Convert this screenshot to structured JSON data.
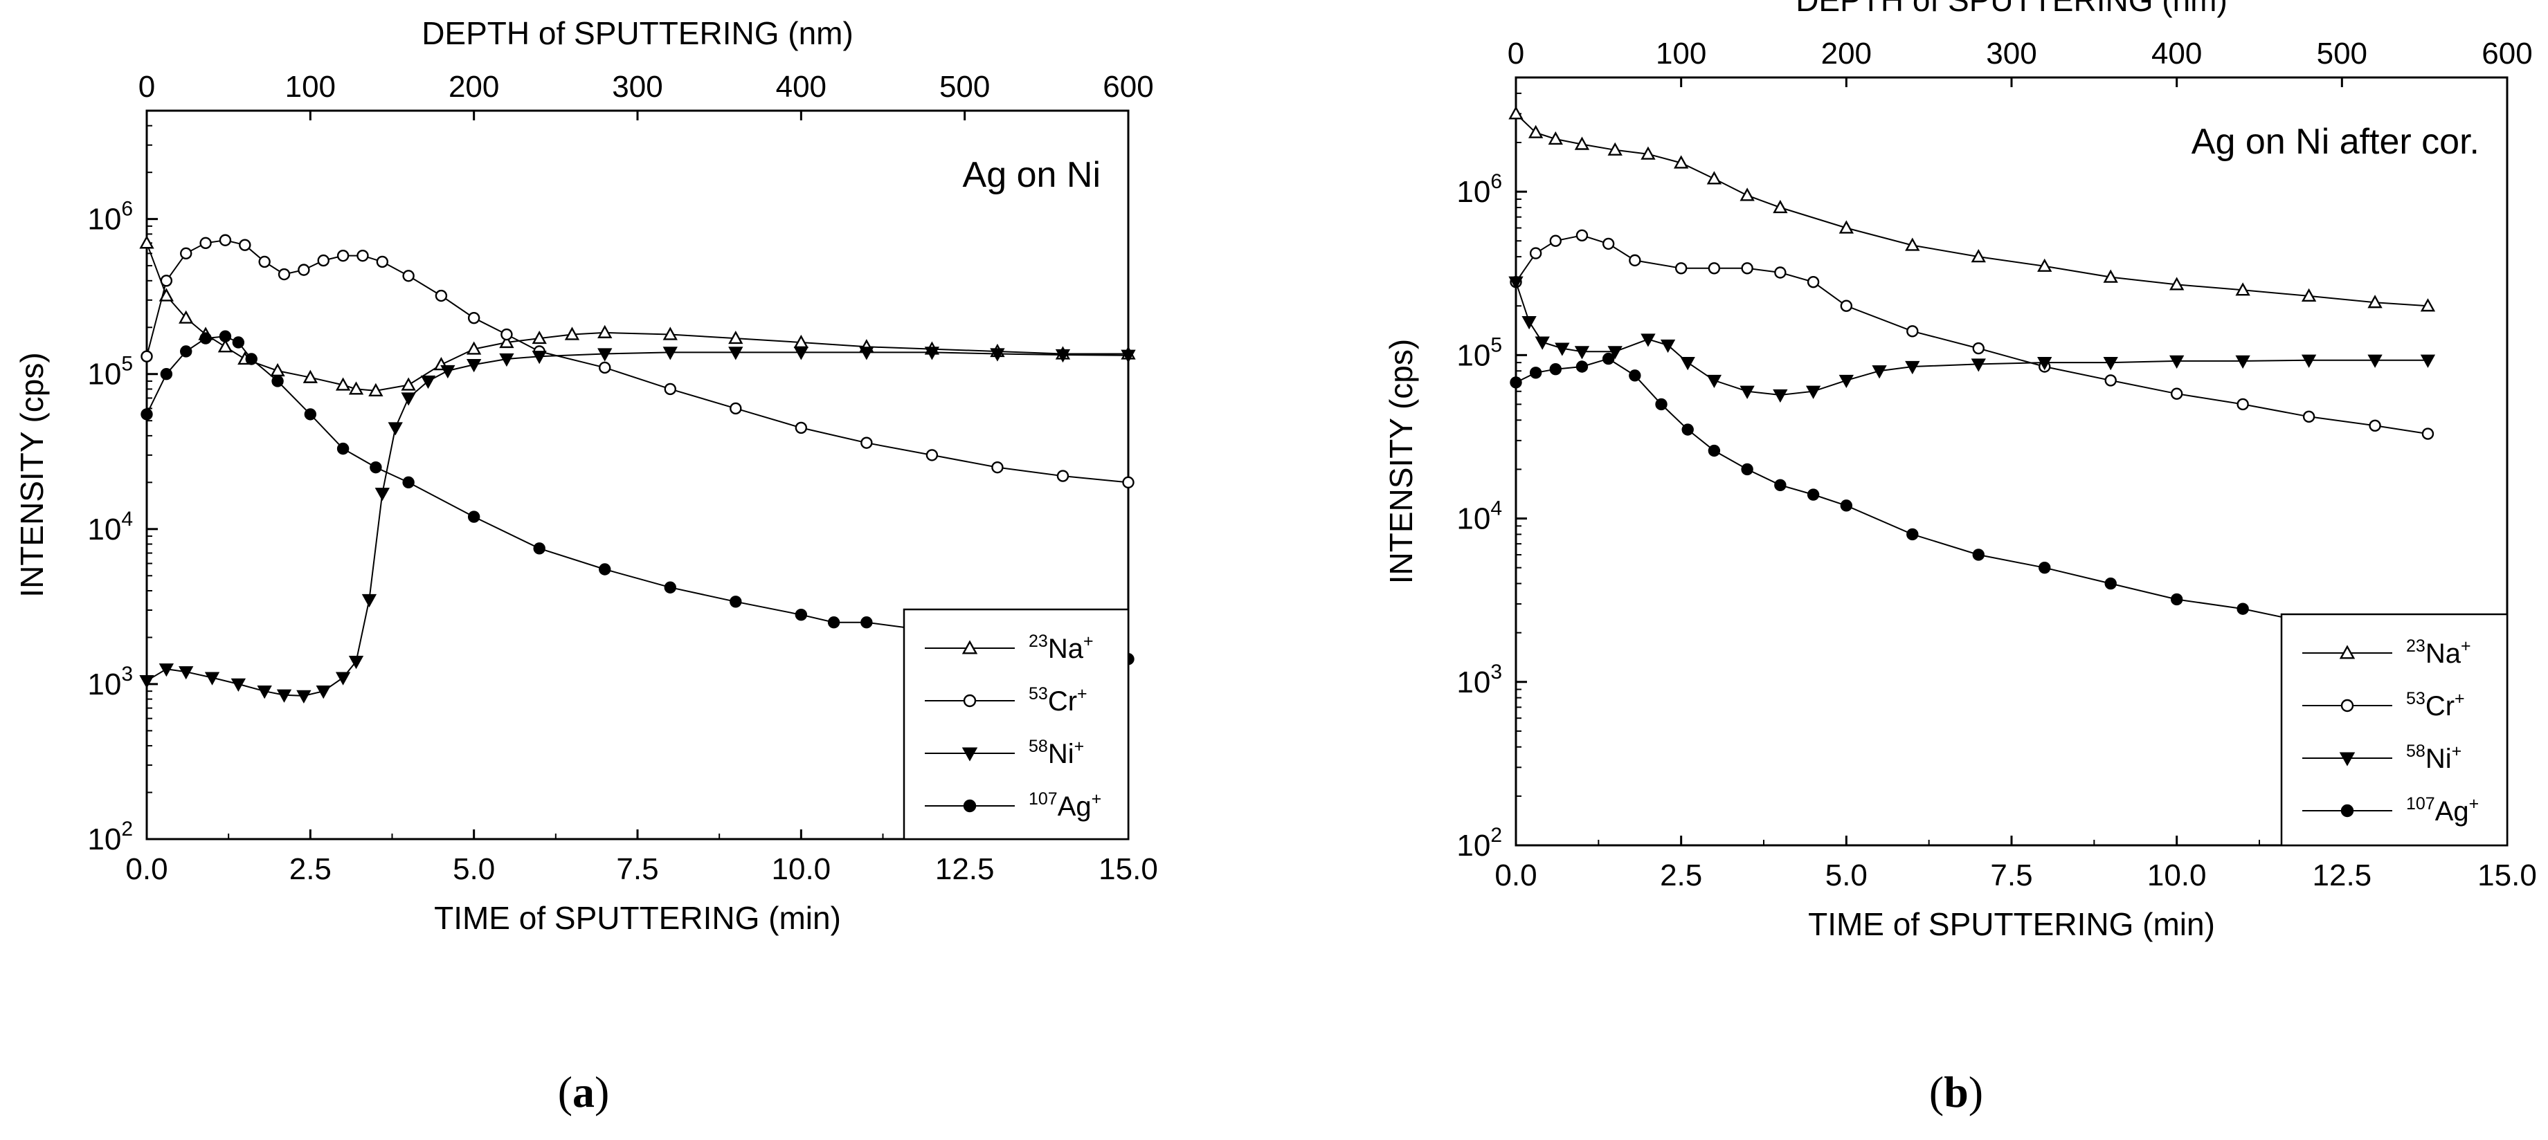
{
  "chart_data": [
    {
      "type": "line",
      "panel": "(a)",
      "panel_letter": "a",
      "annotation": "Ag on Ni",
      "xlabel": "TIME of SPUTTERING (min)",
      "x2label": "DEPTH of SPUTTERING (nm)",
      "ylabel": "INTENSITY (cps)",
      "xlim": [
        0,
        15
      ],
      "x2lim": [
        0,
        600
      ],
      "ylim": [
        100,
        5000000
      ],
      "yscale": "log",
      "xticks": [
        "0.0",
        "2.5",
        "5.0",
        "7.5",
        "10.0",
        "12.5",
        "15.0"
      ],
      "x2ticks": [
        "0",
        "100",
        "200",
        "300",
        "400",
        "500",
        "600"
      ],
      "yticks": [
        {
          "base": "10",
          "exp": "2"
        },
        {
          "base": "10",
          "exp": "3"
        },
        {
          "base": "10",
          "exp": "4"
        },
        {
          "base": "10",
          "exp": "5"
        },
        {
          "base": "10",
          "exp": "6"
        }
      ],
      "legend_position": "lower-right",
      "series": [
        {
          "name": "23Na+",
          "mass": "23",
          "element": "Na",
          "charge": "+",
          "marker": "triangle-open",
          "x": [
            0,
            0.3,
            0.6,
            0.9,
            1.2,
            1.5,
            2,
            2.5,
            3,
            3.2,
            3.5,
            4,
            4.5,
            5,
            5.5,
            6,
            6.5,
            7,
            8,
            9,
            10,
            11,
            12,
            13,
            14,
            15
          ],
          "values": [
            700000,
            320000,
            230000,
            180000,
            150000,
            125000,
            105000,
            95000,
            85000,
            80000,
            78000,
            85000,
            115000,
            145000,
            160000,
            170000,
            180000,
            185000,
            180000,
            170000,
            160000,
            150000,
            145000,
            140000,
            135000,
            135000
          ]
        },
        {
          "name": "53Cr+",
          "mass": "53",
          "element": "Cr",
          "charge": "+",
          "marker": "circle-open",
          "x": [
            0,
            0.3,
            0.6,
            0.9,
            1.2,
            1.5,
            1.8,
            2.1,
            2.4,
            2.7,
            3.0,
            3.3,
            3.6,
            4.0,
            4.5,
            5,
            5.5,
            6,
            7,
            8,
            9,
            10,
            11,
            12,
            13,
            14,
            15
          ],
          "values": [
            130000,
            400000,
            600000,
            700000,
            730000,
            680000,
            530000,
            440000,
            470000,
            540000,
            580000,
            580000,
            530000,
            430000,
            320000,
            230000,
            180000,
            140000,
            110000,
            80000,
            60000,
            45000,
            36000,
            30000,
            25000,
            22000,
            20000
          ]
        },
        {
          "name": "58Ni+",
          "mass": "58",
          "element": "Ni",
          "charge": "+",
          "marker": "triangle-filled-down",
          "x": [
            0,
            0.3,
            0.6,
            1.0,
            1.4,
            1.8,
            2.1,
            2.4,
            2.7,
            3.0,
            3.2,
            3.4,
            3.6,
            3.8,
            4.0,
            4.3,
            4.6,
            5,
            5.5,
            6,
            7,
            8,
            9,
            10,
            11,
            12,
            13,
            14,
            15
          ],
          "values": [
            1050,
            1250,
            1200,
            1100,
            1000,
            900,
            850,
            840,
            900,
            1100,
            1400,
            3500,
            17000,
            45000,
            70000,
            90000,
            105000,
            115000,
            125000,
            130000,
            135000,
            138000,
            138000,
            138000,
            138000,
            138000,
            135000,
            133000,
            132000
          ]
        },
        {
          "name": "107Ag+",
          "mass": "107",
          "element": "Ag",
          "charge": "+",
          "marker": "circle-filled",
          "x": [
            0,
            0.3,
            0.6,
            0.9,
            1.2,
            1.4,
            1.6,
            2.0,
            2.5,
            3.0,
            3.5,
            4.0,
            5.0,
            6.0,
            7.0,
            8.0,
            9.0,
            10.0,
            10.5,
            11.0,
            12.0,
            13.0,
            14.0,
            15.0
          ],
          "values": [
            55000,
            100000,
            140000,
            170000,
            175000,
            160000,
            125000,
            90000,
            55000,
            33000,
            25000,
            20000,
            12000,
            7500,
            5500,
            4200,
            3400,
            2800,
            2500,
            2500,
            2200,
            1900,
            1650,
            1450
          ]
        }
      ]
    },
    {
      "type": "line",
      "panel": "(b)",
      "panel_letter": "b",
      "annotation": "Ag on Ni after cor.",
      "xlabel": "TIME of SPUTTERING (min)",
      "x2label": "DEPTH of SPUTTERING (nm)",
      "ylabel": "INTENSITY (cps)",
      "xlim": [
        0,
        15
      ],
      "x2lim": [
        0,
        600
      ],
      "ylim": [
        100,
        5000000
      ],
      "yscale": "log",
      "xticks": [
        "0.0",
        "2.5",
        "5.0",
        "7.5",
        "10.0",
        "12.5",
        "15.0"
      ],
      "x2ticks": [
        "0",
        "100",
        "200",
        "300",
        "400",
        "500",
        "600"
      ],
      "yticks": [
        {
          "base": "10",
          "exp": "2"
        },
        {
          "base": "10",
          "exp": "3"
        },
        {
          "base": "10",
          "exp": "4"
        },
        {
          "base": "10",
          "exp": "5"
        },
        {
          "base": "10",
          "exp": "6"
        }
      ],
      "legend_position": "lower-right",
      "series": [
        {
          "name": "23Na+",
          "mass": "23",
          "element": "Na",
          "charge": "+",
          "marker": "triangle-open",
          "x": [
            0,
            0.3,
            0.6,
            1.0,
            1.5,
            2.0,
            2.5,
            3.0,
            3.5,
            4.0,
            5.0,
            6.0,
            7.0,
            8.0,
            9.0,
            10.0,
            11.0,
            12.0,
            13.0,
            13.8
          ],
          "values": [
            3000000,
            2300000,
            2100000,
            1950000,
            1800000,
            1700000,
            1500000,
            1200000,
            950000,
            800000,
            600000,
            470000,
            400000,
            350000,
            300000,
            270000,
            250000,
            230000,
            210000,
            200000
          ]
        },
        {
          "name": "53Cr+",
          "mass": "53",
          "element": "Cr",
          "charge": "+",
          "marker": "circle-open",
          "x": [
            0,
            0.3,
            0.6,
            1.0,
            1.4,
            1.8,
            2.5,
            3.0,
            3.5,
            4.0,
            4.5,
            5.0,
            6.0,
            7.0,
            8.0,
            9.0,
            10.0,
            11.0,
            12.0,
            13.0,
            13.8
          ],
          "values": [
            280000,
            420000,
            500000,
            540000,
            480000,
            380000,
            340000,
            340000,
            340000,
            320000,
            280000,
            200000,
            140000,
            110000,
            85000,
            70000,
            58000,
            50000,
            42000,
            37000,
            33000
          ]
        },
        {
          "name": "58Ni+",
          "mass": "58",
          "element": "Ni",
          "charge": "+",
          "marker": "triangle-filled-down",
          "x": [
            0,
            0.2,
            0.4,
            0.7,
            1.0,
            1.5,
            2.0,
            2.3,
            2.6,
            3.0,
            3.5,
            4.0,
            4.5,
            5.0,
            5.5,
            6.0,
            7.0,
            8.0,
            9.0,
            10.0,
            11.0,
            12.0,
            13.0,
            13.8
          ],
          "values": [
            280000,
            160000,
            120000,
            110000,
            105000,
            105000,
            125000,
            115000,
            90000,
            70000,
            60000,
            57000,
            60000,
            70000,
            80000,
            85000,
            88000,
            90000,
            90000,
            92000,
            92000,
            93000,
            93000,
            93000
          ]
        },
        {
          "name": "107Ag+",
          "mass": "107",
          "element": "Ag",
          "charge": "+",
          "marker": "circle-filled",
          "x": [
            0,
            0.3,
            0.6,
            1.0,
            1.4,
            1.8,
            2.2,
            2.6,
            3.0,
            3.5,
            4.0,
            4.5,
            5.0,
            6.0,
            7.0,
            8.0,
            9.0,
            10.0,
            11.0,
            12.0,
            12.5
          ],
          "values": [
            68000,
            78000,
            82000,
            85000,
            95000,
            75000,
            50000,
            35000,
            26000,
            20000,
            16000,
            14000,
            12000,
            8000,
            6000,
            5000,
            4000,
            3200,
            2800,
            2300,
            2000
          ]
        }
      ]
    }
  ]
}
